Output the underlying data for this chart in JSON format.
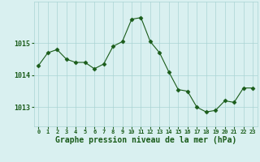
{
  "x": [
    0,
    1,
    2,
    3,
    4,
    5,
    6,
    7,
    8,
    9,
    10,
    11,
    12,
    13,
    14,
    15,
    16,
    17,
    18,
    19,
    20,
    21,
    22,
    23
  ],
  "y": [
    1014.3,
    1014.7,
    1014.8,
    1014.5,
    1014.4,
    1014.4,
    1014.2,
    1014.35,
    1014.9,
    1015.05,
    1015.75,
    1015.8,
    1015.05,
    1014.7,
    1014.1,
    1013.55,
    1013.5,
    1013.0,
    1012.85,
    1012.9,
    1013.2,
    1013.15,
    1013.6,
    1013.6
  ],
  "line_color": "#1a5c1a",
  "marker": "D",
  "marker_size": 2.5,
  "bg_color": "#d9f0f0",
  "grid_color": "#aad4d4",
  "title": "Graphe pression niveau de la mer (hPa)",
  "title_fontsize": 7,
  "label_color": "#1a5c1a",
  "yticks": [
    1013,
    1014,
    1015
  ],
  "ylim": [
    1012.4,
    1016.3
  ],
  "xlim": [
    -0.5,
    23.5
  ],
  "xtick_labels": [
    "0",
    "1",
    "2",
    "3",
    "4",
    "5",
    "6",
    "7",
    "8",
    "9",
    "10",
    "11",
    "12",
    "13",
    "14",
    "15",
    "16",
    "17",
    "18",
    "19",
    "20",
    "21",
    "22",
    "23"
  ]
}
